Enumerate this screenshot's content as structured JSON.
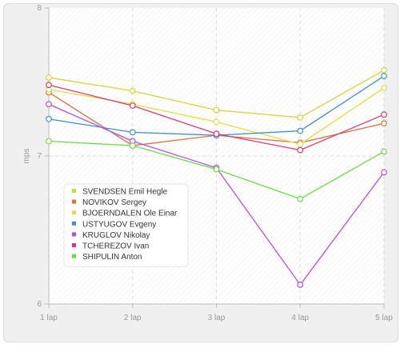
{
  "chart_data": {
    "type": "line",
    "title": "",
    "xlabel": "",
    "ylabel": "mps",
    "categories": [
      "1 lap",
      "2 lap",
      "3 lap",
      "4 lap",
      "5 lap"
    ],
    "ylim": [
      6,
      8
    ],
    "yticks": [
      6,
      7,
      8
    ],
    "grid": true,
    "legend_position": "bottom-left",
    "series": [
      {
        "name": "SVENDSEN Emil Hegle",
        "color": "#d4d43c",
        "values": [
          7.53,
          7.44,
          7.31,
          7.26,
          7.58
        ]
      },
      {
        "name": "NOVIKOV Sergey",
        "color": "#e0713c",
        "values": [
          7.43,
          7.07,
          7.14,
          7.09,
          7.22
        ]
      },
      {
        "name": "BJOERNDALEN Ole Einar",
        "color": "#dede44",
        "values": [
          7.45,
          7.35,
          7.23,
          7.08,
          7.46
        ]
      },
      {
        "name": "USTYUGOV Evgeny",
        "color": "#3f8fd6",
        "values": [
          7.25,
          7.16,
          7.14,
          7.17,
          7.54
        ]
      },
      {
        "name": "KRUGLOV Nikolay",
        "color": "#b44ee0",
        "values": [
          7.35,
          7.1,
          6.92,
          6.13,
          6.89
        ]
      },
      {
        "name": "TCHEREZOV Ivan",
        "color": "#d93c70",
        "values": [
          7.48,
          7.34,
          7.15,
          7.04,
          7.28
        ]
      },
      {
        "name": "SHIPULIN Anton",
        "color": "#6cdc44",
        "values": [
          7.1,
          7.07,
          6.91,
          6.71,
          7.03
        ]
      }
    ]
  }
}
